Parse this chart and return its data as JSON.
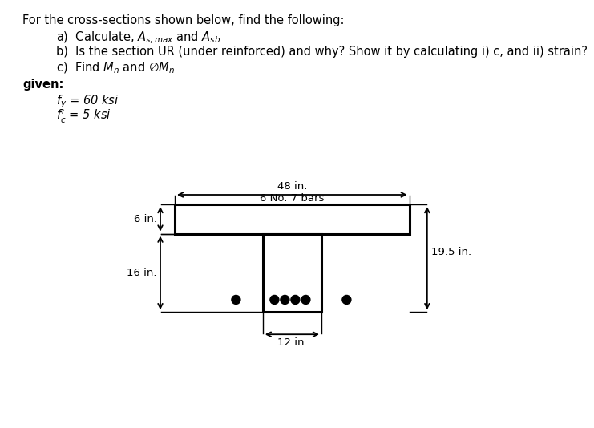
{
  "title_text": "For the cross-sections shown below, find the following:",
  "items": [
    "a)  Calculate, $A_{s,max}$ and $A_{sb}$",
    "b)  Is the section UR (under reinforced) and why? Show it by calculating i) c, and ii) strain?",
    "c)  Find $M_n$ and $\\varnothing M_n$"
  ],
  "given_label": "given:",
  "given_fy": "$f_y$ = 60 ksi",
  "given_fc": "$f_c^{\\prime}$ = 5 ksi",
  "dim_48": "48 in.",
  "dim_6": "6 in.",
  "dim_16": "16 in.",
  "dim_195": "19.5 in.",
  "dim_12": "12 in.",
  "bars_label": "6 No. 7 bars",
  "bg_color": "#ffffff",
  "shape_color": "#000000"
}
